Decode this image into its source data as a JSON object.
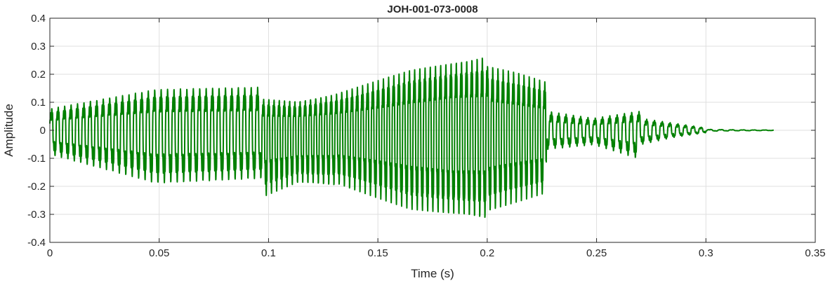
{
  "chart_data": {
    "type": "line",
    "title": "JOH-001-073-0008",
    "xlabel": "Time (s)",
    "ylabel": "Amplitude",
    "xlim": [
      0,
      0.35
    ],
    "ylim": [
      -0.4,
      0.4
    ],
    "grid": true,
    "x_ticks": [
      0,
      0.05,
      0.1,
      0.15,
      0.2,
      0.25,
      0.3,
      0.35
    ],
    "x_tick_labels": [
      "0",
      "0.05",
      "0.1",
      "0.15",
      "0.2",
      "0.25",
      "0.3",
      "0.35"
    ],
    "y_ticks": [
      0.4,
      0.3,
      0.2,
      0.1,
      0,
      -0.1,
      -0.2,
      -0.3,
      -0.4
    ],
    "y_tick_labels": [
      "0.4",
      "0.3",
      "0.2",
      "0.1",
      "0",
      "-0.1",
      "-0.2",
      "-0.3",
      "-0.4"
    ],
    "series": [
      {
        "color": "#008000",
        "x_start": 0,
        "x_end": 0.331,
        "segments": [
          {
            "t0": 0.0,
            "t1": 0.097,
            "freq": 340,
            "pos": [
              0.09,
              0.17,
              0.18
            ],
            "neg": [
              -0.1,
              -0.22,
              -0.2
            ]
          },
          {
            "t0": 0.097,
            "t1": 0.13,
            "freq": 420,
            "pos": [
              0.13,
              0.12,
              0.15
            ],
            "neg": [
              -0.28,
              -0.22,
              -0.23
            ]
          },
          {
            "t0": 0.13,
            "t1": 0.2,
            "freq": 420,
            "pos": [
              0.15,
              0.25,
              0.31
            ],
            "neg": [
              -0.22,
              -0.33,
              -0.37
            ]
          },
          {
            "t0": 0.2,
            "t1": 0.227,
            "freq": 420,
            "pos": [
              0.27,
              0.24,
              0.2
            ],
            "neg": [
              -0.34,
              -0.3,
              -0.26
            ]
          },
          {
            "t0": 0.227,
            "t1": 0.27,
            "freq": 300,
            "pos": [
              0.08,
              0.05,
              0.08
            ],
            "neg": [
              -0.08,
              -0.06,
              -0.12
            ]
          },
          {
            "t0": 0.27,
            "t1": 0.3,
            "freq": 280,
            "pos": [
              0.05,
              0.03,
              0.01
            ],
            "neg": [
              -0.06,
              -0.03,
              -0.01
            ]
          },
          {
            "t0": 0.3,
            "t1": 0.331,
            "freq": 200,
            "pos": [
              0.004,
              0.002,
              0.001
            ],
            "neg": [
              -0.004,
              -0.002,
              -0.001
            ]
          }
        ]
      }
    ]
  }
}
